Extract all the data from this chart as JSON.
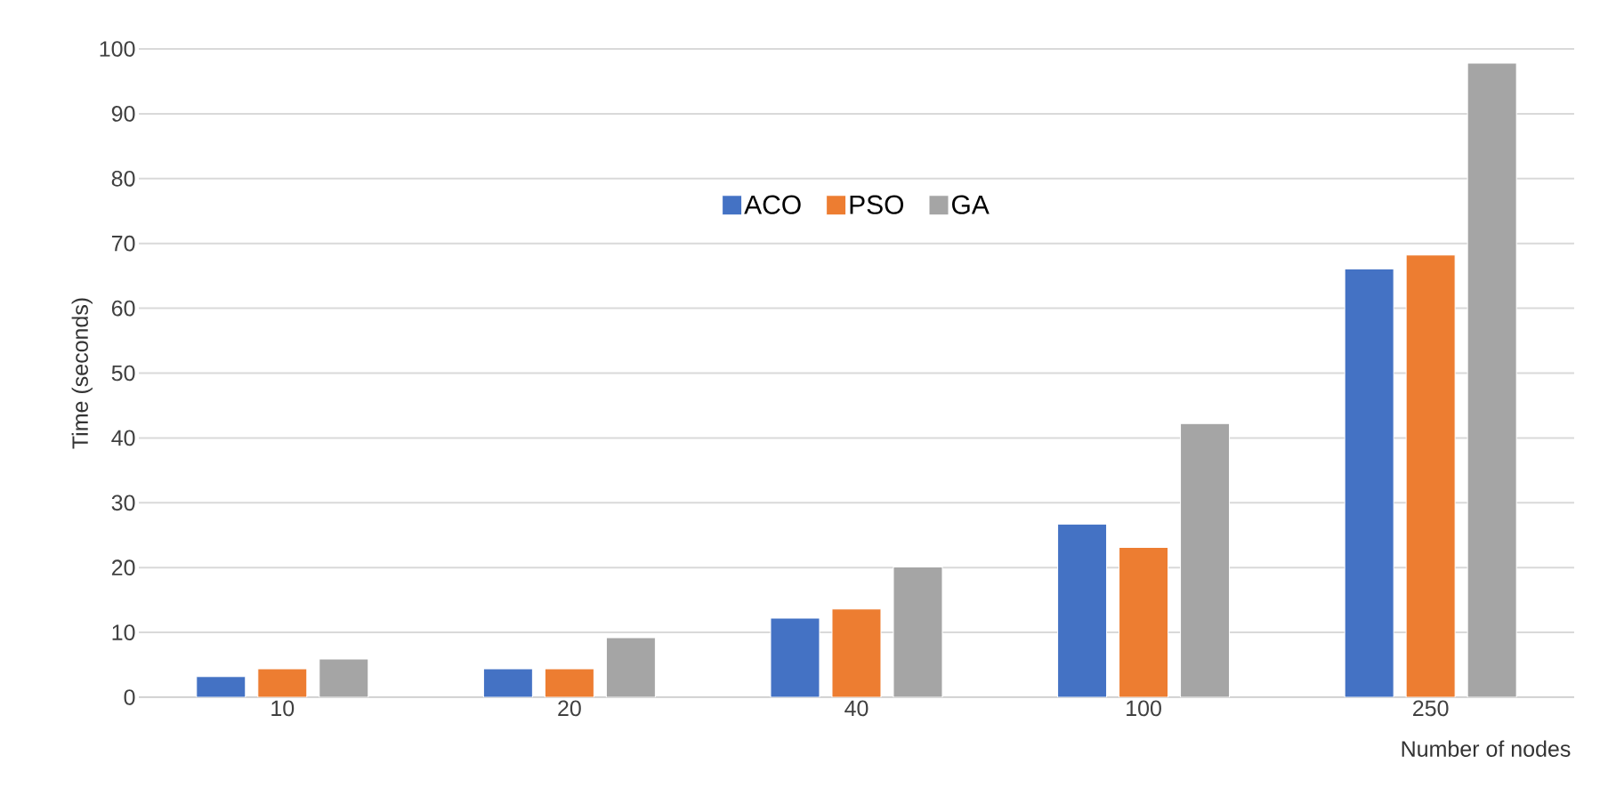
{
  "chart_data": {
    "type": "bar",
    "xlabel": "Number of nodes",
    "ylabel": "Time (seconds)",
    "categories": [
      "10",
      "20",
      "40",
      "100",
      "250"
    ],
    "series": [
      {
        "name": "ACO",
        "color": "#4472c4",
        "values": [
          3.2,
          4.4,
          12.2,
          26.7,
          66.1
        ]
      },
      {
        "name": "PSO",
        "color": "#ed7d31",
        "values": [
          4.4,
          4.4,
          13.6,
          23.1,
          68.2
        ]
      },
      {
        "name": "GA",
        "color": "#a5a5a5",
        "values": [
          5.9,
          9.2,
          20.1,
          42.2,
          97.8
        ]
      }
    ],
    "ylim": [
      0,
      100
    ],
    "yticks": [
      0,
      10,
      20,
      30,
      40,
      50,
      60,
      70,
      80,
      90,
      100
    ],
    "grid": "y",
    "legend": "top"
  }
}
